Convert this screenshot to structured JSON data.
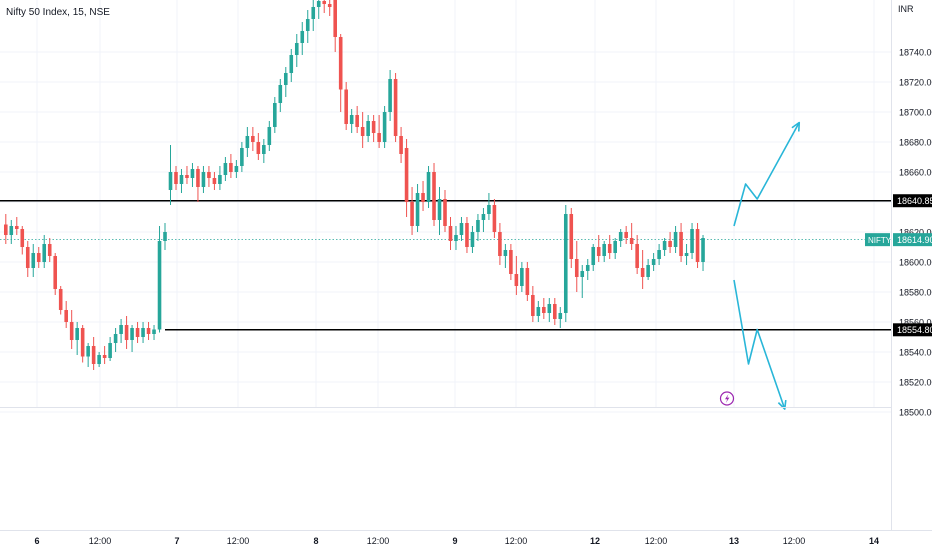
{
  "chart_data": {
    "type": "candlestick",
    "title": "Nifty 50 Index, 15, NSE",
    "currency": "INR",
    "price_range": [
      18495,
      18770
    ],
    "y_ticks": [
      18500,
      18520,
      18540,
      18560,
      18580,
      18600,
      18620,
      18640,
      18660,
      18680,
      18700,
      18720,
      18740
    ],
    "y_tick_labels": [
      "18500.00",
      "18520.00",
      "18540.00",
      "18560.00",
      "18580.00",
      "18600.00",
      "18620.00",
      "18640.00",
      "18660.00",
      "18680.00",
      "18700.00",
      "18720.00",
      "18740.00"
    ],
    "x_tick_labels": [
      "6",
      "12:00",
      "7",
      "12:00",
      "8",
      "12:00",
      "9",
      "12:00",
      "12",
      "12:00",
      "13",
      "12:00",
      "14"
    ],
    "x_tick_bold": [
      true,
      false,
      true,
      false,
      true,
      false,
      true,
      false,
      true,
      false,
      true,
      false,
      true
    ],
    "horizontal_lines": [
      {
        "price": 18640.85,
        "label": "18640.85"
      },
      {
        "price": 18554.8,
        "label": "18554.80"
      }
    ],
    "last_price": {
      "symbol": "NIFTY",
      "value": 18614.9,
      "label": "18614.90"
    },
    "projection_paths": [
      [
        [
          18624,
          0
        ],
        [
          18652,
          0.8
        ],
        [
          18642,
          1.6
        ],
        [
          18693,
          4.5
        ]
      ],
      [
        [
          18588,
          0
        ],
        [
          18532,
          1
        ],
        [
          18555,
          1.6
        ],
        [
          18502,
          3.5
        ]
      ]
    ],
    "colors": {
      "up": "#26a69a",
      "down": "#ef5350",
      "projection": "#29b6d8",
      "line": "#000000",
      "last_price": "#26a69a",
      "lightning": "#9c27b0"
    },
    "lightning_icon": "lightning-bolt-icon",
    "candles": [
      [
        18625,
        18632,
        18612,
        18618
      ],
      [
        18618,
        18628,
        18612,
        18624
      ],
      [
        18624,
        18630,
        18618,
        18622
      ],
      [
        18622,
        18624,
        18605,
        18610
      ],
      [
        18610,
        18614,
        18590,
        18596
      ],
      [
        18596,
        18612,
        18590,
        18606
      ],
      [
        18606,
        18610,
        18596,
        18600
      ],
      [
        18600,
        18618,
        18596,
        18612
      ],
      [
        18612,
        18616,
        18600,
        18604
      ],
      [
        18604,
        18606,
        18578,
        18582
      ],
      [
        18582,
        18584,
        18565,
        18568
      ],
      [
        18568,
        18574,
        18556,
        18560
      ],
      [
        18560,
        18568,
        18542,
        18548
      ],
      [
        18548,
        18560,
        18538,
        18556
      ],
      [
        18556,
        18558,
        18533,
        18537
      ],
      [
        18537,
        18546,
        18530,
        18544
      ],
      [
        18544,
        18550,
        18528,
        18532
      ],
      [
        18532,
        18540,
        18530,
        18538
      ],
      [
        18538,
        18544,
        18532,
        18536
      ],
      [
        18536,
        18550,
        18534,
        18546
      ],
      [
        18546,
        18556,
        18540,
        18552
      ],
      [
        18552,
        18562,
        18546,
        18558
      ],
      [
        18558,
        18564,
        18542,
        18548
      ],
      [
        18548,
        18558,
        18540,
        18556
      ],
      [
        18556,
        18560,
        18546,
        18550
      ],
      [
        18550,
        18560,
        18546,
        18556
      ],
      [
        18556,
        18560,
        18548,
        18552
      ],
      [
        18552,
        18558,
        18548,
        18555
      ],
      [
        18555,
        18624,
        18553,
        18614
      ],
      [
        18614,
        18626,
        18608,
        18620
      ],
      [
        18648,
        18678,
        18638,
        18660
      ],
      [
        18660,
        18664,
        18648,
        18652
      ],
      [
        18652,
        18662,
        18646,
        18658
      ],
      [
        18658,
        18664,
        18652,
        18656
      ],
      [
        18656,
        18666,
        18650,
        18662
      ],
      [
        18662,
        18664,
        18640,
        18650
      ],
      [
        18650,
        18664,
        18646,
        18660
      ],
      [
        18660,
        18664,
        18650,
        18656
      ],
      [
        18656,
        18660,
        18648,
        18652
      ],
      [
        18652,
        18664,
        18648,
        18658
      ],
      [
        18658,
        18670,
        18654,
        18666
      ],
      [
        18666,
        18672,
        18656,
        18660
      ],
      [
        18660,
        18668,
        18656,
        18664
      ],
      [
        18664,
        18680,
        18660,
        18676
      ],
      [
        18676,
        18690,
        18670,
        18684
      ],
      [
        18684,
        18690,
        18674,
        18680
      ],
      [
        18680,
        18686,
        18668,
        18672
      ],
      [
        18672,
        18682,
        18666,
        18678
      ],
      [
        18678,
        18694,
        18674,
        18690
      ],
      [
        18690,
        18710,
        18686,
        18706
      ],
      [
        18706,
        18722,
        18700,
        18718
      ],
      [
        18718,
        18730,
        18710,
        18726
      ],
      [
        18726,
        18742,
        18720,
        18738
      ],
      [
        18738,
        18752,
        18730,
        18746
      ],
      [
        18746,
        18760,
        18738,
        18754
      ],
      [
        18754,
        18768,
        18746,
        18762
      ],
      [
        18762,
        18775,
        18754,
        18770
      ],
      [
        18770,
        18778,
        18762,
        18774
      ],
      [
        18774,
        18778,
        18766,
        18772
      ],
      [
        18772,
        18776,
        18764,
        18770
      ],
      [
        18775,
        18780,
        18740,
        18750
      ],
      [
        18750,
        18752,
        18700,
        18715
      ],
      [
        18715,
        18720,
        18688,
        18692
      ],
      [
        18692,
        18702,
        18686,
        18698
      ],
      [
        18698,
        18704,
        18686,
        18690
      ],
      [
        18690,
        18700,
        18676,
        18684
      ],
      [
        18684,
        18698,
        18680,
        18694
      ],
      [
        18694,
        18698,
        18680,
        18686
      ],
      [
        18686,
        18698,
        18676,
        18680
      ],
      [
        18680,
        18704,
        18676,
        18700
      ],
      [
        18700,
        18728,
        18694,
        18722
      ],
      [
        18722,
        18726,
        18680,
        18684
      ],
      [
        18684,
        18690,
        18666,
        18672
      ],
      [
        18676,
        18682,
        18630,
        18640
      ],
      [
        18640,
        18650,
        18618,
        18624
      ],
      [
        18624,
        18652,
        18620,
        18646
      ],
      [
        18646,
        18654,
        18634,
        18640
      ],
      [
        18640,
        18664,
        18636,
        18660
      ],
      [
        18660,
        18666,
        18624,
        18628
      ],
      [
        18628,
        18650,
        18618,
        18642
      ],
      [
        18642,
        18648,
        18620,
        18624
      ],
      [
        18624,
        18630,
        18608,
        18614
      ],
      [
        18614,
        18624,
        18608,
        18618
      ],
      [
        18618,
        18630,
        18614,
        18626
      ],
      [
        18626,
        18630,
        18606,
        18610
      ],
      [
        18610,
        18624,
        18606,
        18620
      ],
      [
        18620,
        18632,
        18614,
        18628
      ],
      [
        18628,
        18636,
        18620,
        18632
      ],
      [
        18632,
        18646,
        18628,
        18638
      ],
      [
        18638,
        18642,
        18616,
        18620
      ],
      [
        18620,
        18626,
        18598,
        18604
      ],
      [
        18604,
        18612,
        18596,
        18608
      ],
      [
        18608,
        18612,
        18588,
        18592
      ],
      [
        18592,
        18604,
        18578,
        18584
      ],
      [
        18584,
        18600,
        18580,
        18596
      ],
      [
        18596,
        18600,
        18574,
        18578
      ],
      [
        18578,
        18584,
        18560,
        18564
      ],
      [
        18564,
        18574,
        18560,
        18570
      ],
      [
        18570,
        18576,
        18562,
        18566
      ],
      [
        18566,
        18576,
        18560,
        18572
      ],
      [
        18572,
        18576,
        18558,
        18562
      ],
      [
        18562,
        18570,
        18556,
        18566
      ],
      [
        18566,
        18638,
        18560,
        18632
      ],
      [
        18632,
        18636,
        18596,
        18602
      ],
      [
        18602,
        18614,
        18580,
        18590
      ],
      [
        18590,
        18598,
        18576,
        18594
      ],
      [
        18594,
        18602,
        18588,
        18598
      ],
      [
        18598,
        18612,
        18594,
        18610
      ],
      [
        18610,
        18618,
        18600,
        18604
      ],
      [
        18604,
        18614,
        18600,
        18612
      ],
      [
        18612,
        18618,
        18602,
        18606
      ],
      [
        18606,
        18616,
        18602,
        18614
      ],
      [
        18614,
        18622,
        18610,
        18620
      ],
      [
        18620,
        18624,
        18612,
        18616
      ],
      [
        18616,
        18626,
        18608,
        18612
      ],
      [
        18612,
        18618,
        18592,
        18596
      ],
      [
        18596,
        18608,
        18582,
        18590
      ],
      [
        18590,
        18602,
        18588,
        18598
      ],
      [
        18598,
        18606,
        18594,
        18602
      ],
      [
        18602,
        18612,
        18598,
        18608
      ],
      [
        18608,
        18616,
        18604,
        18614
      ],
      [
        18614,
        18620,
        18606,
        18610
      ],
      [
        18610,
        18624,
        18606,
        18620
      ],
      [
        18620,
        18626,
        18600,
        18604
      ],
      [
        18604,
        18612,
        18598,
        18606
      ],
      [
        18606,
        18626,
        18602,
        18622
      ],
      [
        18622,
        18626,
        18596,
        18600
      ],
      [
        18600,
        18618,
        18594,
        18616
      ]
    ]
  }
}
